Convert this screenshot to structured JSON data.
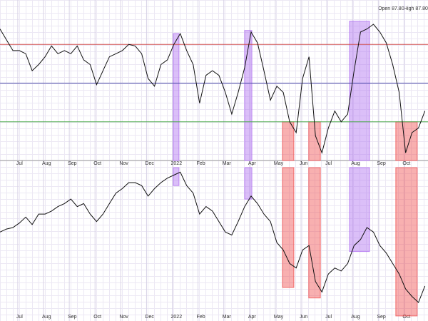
{
  "chart_data": {
    "type": "line",
    "annotations": [
      "Open 87.80",
      "High 87.80"
    ],
    "xlim": [
      0.31,
      16.93
    ],
    "xticks": [
      {
        "value": 1,
        "label": "Jul"
      },
      {
        "value": 2,
        "label": "Aug"
      },
      {
        "value": 3,
        "label": "Sep"
      },
      {
        "value": 4,
        "label": "Oct"
      },
      {
        "value": 5,
        "label": "Nov"
      },
      {
        "value": 6,
        "label": "Dec"
      },
      {
        "value": 7,
        "label": "2022"
      },
      {
        "value": 8,
        "label": "Feb"
      },
      {
        "value": 9,
        "label": "Mar"
      },
      {
        "value": 10,
        "label": "Apr"
      },
      {
        "value": 11,
        "label": "May"
      },
      {
        "value": 12,
        "label": "Jun"
      },
      {
        "value": 13,
        "label": "Jul"
      },
      {
        "value": 14,
        "label": "Aug"
      },
      {
        "value": 15,
        "label": "Sep"
      },
      {
        "value": 16,
        "label": "Oct"
      }
    ],
    "grid": true,
    "x": [
      0.31,
      0.56,
      0.81,
      1.06,
      1.31,
      1.56,
      1.81,
      2.06,
      2.31,
      2.56,
      2.81,
      3.06,
      3.31,
      3.56,
      3.81,
      4.06,
      4.31,
      4.56,
      4.81,
      5.06,
      5.31,
      5.56,
      5.81,
      6.06,
      6.31,
      6.56,
      6.81,
      7.06,
      7.31,
      7.56,
      7.81,
      8.06,
      8.31,
      8.56,
      8.81,
      9.06,
      9.31,
      9.56,
      9.81,
      10.06,
      10.31,
      10.56,
      10.81,
      11.06,
      11.31,
      11.56,
      11.81,
      12.06,
      12.31,
      12.56,
      12.81,
      13.06,
      13.31,
      13.56,
      13.81,
      14.06,
      14.31,
      14.56,
      14.81,
      15.06,
      15.31,
      15.56,
      15.81,
      16.06,
      16.31,
      16.56,
      16.81
    ],
    "panels": [
      {
        "ylim": [
          0,
          100
        ],
        "color": "#111111",
        "levels": [
          {
            "value": 75,
            "color": "#d05050"
          },
          {
            "value": 50,
            "color": "#4848a8"
          },
          {
            "value": 25,
            "color": "#48a848"
          }
        ],
        "values": [
          85,
          78,
          71,
          71,
          69,
          58,
          62,
          67,
          74,
          69,
          71,
          69,
          74,
          65,
          62,
          49,
          58,
          67,
          69,
          71,
          75,
          74,
          69,
          53,
          48,
          62,
          65,
          75,
          82,
          71,
          62,
          37,
          55,
          58,
          55,
          44,
          30,
          44,
          60,
          83,
          76,
          58,
          39,
          48,
          44,
          25,
          18,
          53,
          67,
          16,
          5,
          21,
          32,
          25,
          30,
          58,
          83,
          85,
          88,
          83,
          76,
          62,
          44,
          5,
          18,
          21,
          32
        ]
      },
      {
        "ylim": [
          0,
          100
        ],
        "color": "#111111",
        "levels": [],
        "values": [
          57,
          59,
          60,
          63,
          67,
          62,
          69,
          69,
          71,
          74,
          76,
          79,
          74,
          76,
          69,
          64,
          69,
          76,
          83,
          86,
          90,
          90,
          88,
          81,
          86,
          90,
          93,
          95,
          97,
          88,
          83,
          69,
          74,
          71,
          64,
          57,
          55,
          64,
          74,
          81,
          76,
          69,
          64,
          50,
          45,
          36,
          33,
          45,
          48,
          24,
          17,
          29,
          33,
          31,
          36,
          48,
          52,
          60,
          57,
          48,
          43,
          36,
          29,
          19,
          14,
          10,
          21
        ]
      }
    ],
    "highlights": [
      {
        "color": "#b070f0",
        "x": [
          7.04,
          7.26
        ],
        "top": [
          0,
          82
        ],
        "bottom": [
          88,
          100
        ]
      },
      {
        "color": "#b070f0",
        "x": [
          9.81,
          10.09
        ],
        "top": [
          0,
          84
        ],
        "bottom": [
          79,
          100
        ]
      },
      {
        "color": "#b070f0",
        "x": [
          13.88,
          14.66
        ],
        "top": [
          0,
          90
        ],
        "bottom": [
          44,
          100
        ]
      },
      {
        "color": "#f05050",
        "x": [
          11.28,
          11.72
        ],
        "top": [
          0,
          25
        ],
        "bottom": [
          20,
          100
        ]
      },
      {
        "color": "#f05050",
        "x": [
          12.3,
          12.75
        ],
        "top": [
          0,
          25
        ],
        "bottom": [
          13,
          100
        ]
      },
      {
        "color": "#f05050",
        "x": [
          15.68,
          16.51
        ],
        "top": [
          0,
          25
        ],
        "bottom": [
          1,
          100
        ]
      }
    ]
  }
}
